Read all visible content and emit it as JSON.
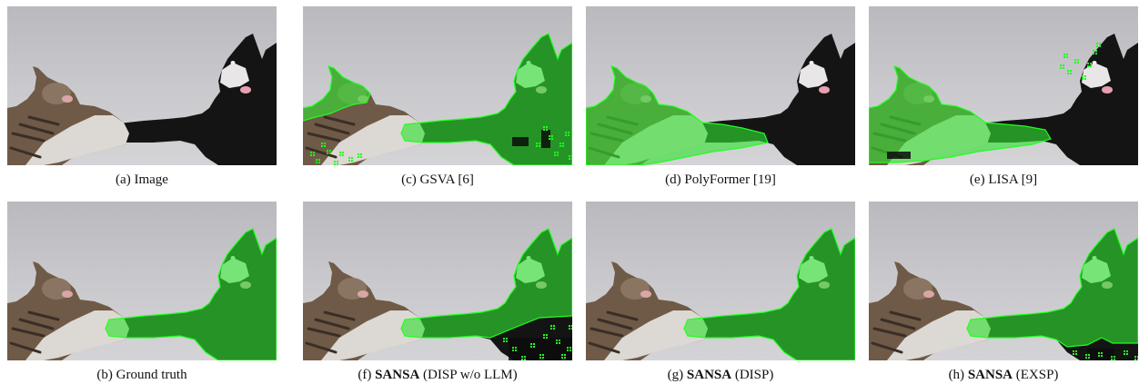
{
  "figure": {
    "colors": {
      "mask_fill": "#32e232",
      "mask_edge": "#20ff20",
      "wall": "#c9c9cd",
      "black_fur": "#141414",
      "white_fur": "#dcd8d3",
      "tabby_fur": "#6f5a48"
    },
    "panels": [
      {
        "key": "image",
        "caption_prefix": "",
        "caption_text": "(a) Image",
        "mask": "none"
      },
      {
        "key": "gsva",
        "caption_prefix": "",
        "caption_text": "(c) GSVA [6]",
        "mask": "gsva"
      },
      {
        "key": "polyformer",
        "caption_prefix": "",
        "caption_text": "(d) PolyFormer [19]",
        "mask": "polyformer"
      },
      {
        "key": "lisa",
        "caption_prefix": "",
        "caption_text": "(e) LISA [9]",
        "mask": "lisa"
      },
      {
        "key": "ground_truth",
        "caption_prefix": "",
        "caption_text": "(b) Ground truth",
        "mask": "gt"
      },
      {
        "key": "sansa_disp_wo_llm",
        "caption_prefix": "(f) ",
        "caption_bold": "SANSA",
        "caption_rest": " (DISP w/o LLM)",
        "mask": "sansa_f"
      },
      {
        "key": "sansa_disp",
        "caption_prefix": "(g) ",
        "caption_bold": "SANSA",
        "caption_rest": " (DISP)",
        "mask": "sansa_g"
      },
      {
        "key": "sansa_exsp",
        "caption_prefix": "(h) ",
        "caption_bold": "SANSA",
        "caption_rest": " (EXSP)",
        "mask": "sansa_h"
      }
    ]
  }
}
